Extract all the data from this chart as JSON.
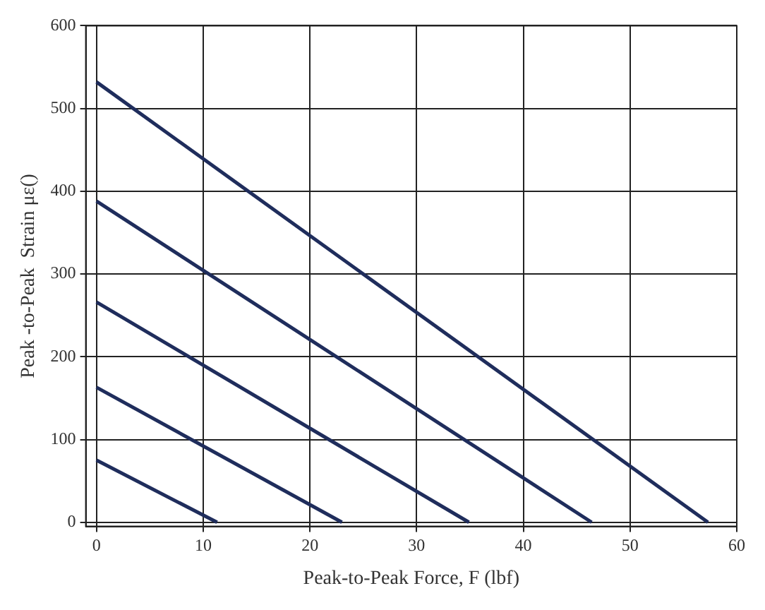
{
  "chart_data": {
    "type": "line",
    "xlabel": "Peak-to-Peak Force, F (lbf)",
    "ylabel": "Peak -to-Peak  Strain με()",
    "xlim": [
      -1,
      60
    ],
    "ylim": [
      -5,
      600
    ],
    "xticks": [
      0,
      10,
      20,
      30,
      40,
      50,
      60
    ],
    "yticks": [
      0,
      100,
      200,
      300,
      400,
      500,
      600
    ],
    "grid": true,
    "line_style": "solid",
    "marker": "none",
    "legend": false,
    "series": [
      {
        "color": "#1f2d5c",
        "x": [
          0,
          57.3
        ],
        "values": [
          532,
          0
        ]
      },
      {
        "color": "#1f2d5c",
        "x": [
          0,
          46.4
        ],
        "values": [
          388,
          0
        ]
      },
      {
        "color": "#1f2d5c",
        "x": [
          0,
          34.9
        ],
        "values": [
          266,
          0
        ]
      },
      {
        "color": "#1f2d5c",
        "x": [
          0,
          23
        ],
        "values": [
          163,
          0
        ]
      },
      {
        "color": "#1f2d5c",
        "x": [
          0,
          11.3
        ],
        "values": [
          75,
          0
        ]
      }
    ]
  }
}
